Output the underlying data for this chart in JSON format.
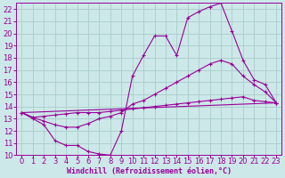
{
  "background_color": "#cce8e8",
  "grid_color": "#aacccc",
  "line_color": "#990099",
  "marker_color": "#990099",
  "xlabel": "Windchill (Refroidissement éolien,°C)",
  "xlim": [
    -0.5,
    23.5
  ],
  "ylim": [
    10,
    22.5
  ],
  "xticks": [
    0,
    1,
    2,
    3,
    4,
    5,
    6,
    7,
    8,
    9,
    10,
    11,
    12,
    13,
    14,
    15,
    16,
    17,
    18,
    19,
    20,
    21,
    22,
    23
  ],
  "yticks": [
    10,
    11,
    12,
    13,
    14,
    15,
    16,
    17,
    18,
    19,
    20,
    21,
    22
  ],
  "line1_x": [
    0,
    1,
    2,
    3,
    4,
    5,
    6,
    7,
    8,
    9,
    10,
    11,
    12,
    13,
    14,
    15,
    16,
    17,
    18,
    19,
    20,
    21,
    22,
    23
  ],
  "line1_y": [
    13.5,
    13.0,
    12.5,
    11.2,
    10.8,
    10.8,
    10.3,
    10.1,
    10.0,
    12.0,
    16.5,
    18.2,
    19.8,
    19.8,
    18.2,
    21.3,
    21.8,
    22.2,
    22.5,
    20.2,
    17.8,
    16.2,
    15.8,
    14.3
  ],
  "line2_x": [
    0,
    1,
    2,
    3,
    4,
    5,
    6,
    7,
    8,
    9,
    10,
    11,
    12,
    13,
    14,
    15,
    16,
    17,
    18,
    19,
    20,
    21,
    22,
    23
  ],
  "line2_y": [
    13.5,
    13.1,
    12.8,
    12.5,
    12.3,
    12.3,
    12.6,
    13.0,
    13.2,
    13.5,
    14.2,
    14.5,
    15.0,
    15.5,
    16.0,
    16.5,
    17.0,
    17.5,
    17.8,
    17.5,
    16.5,
    15.8,
    15.2,
    14.3
  ],
  "line3_x": [
    0,
    1,
    2,
    3,
    4,
    5,
    6,
    7,
    8,
    9,
    10,
    11,
    12,
    13,
    14,
    15,
    16,
    17,
    18,
    19,
    20,
    21,
    22,
    23
  ],
  "line3_y": [
    13.5,
    13.1,
    13.2,
    13.3,
    13.4,
    13.5,
    13.5,
    13.5,
    13.6,
    13.7,
    13.8,
    13.9,
    14.0,
    14.1,
    14.2,
    14.3,
    14.4,
    14.5,
    14.6,
    14.7,
    14.8,
    14.5,
    14.4,
    14.3
  ],
  "line4_x": [
    0,
    23
  ],
  "line4_y": [
    13.5,
    14.3
  ],
  "font_size": 6
}
